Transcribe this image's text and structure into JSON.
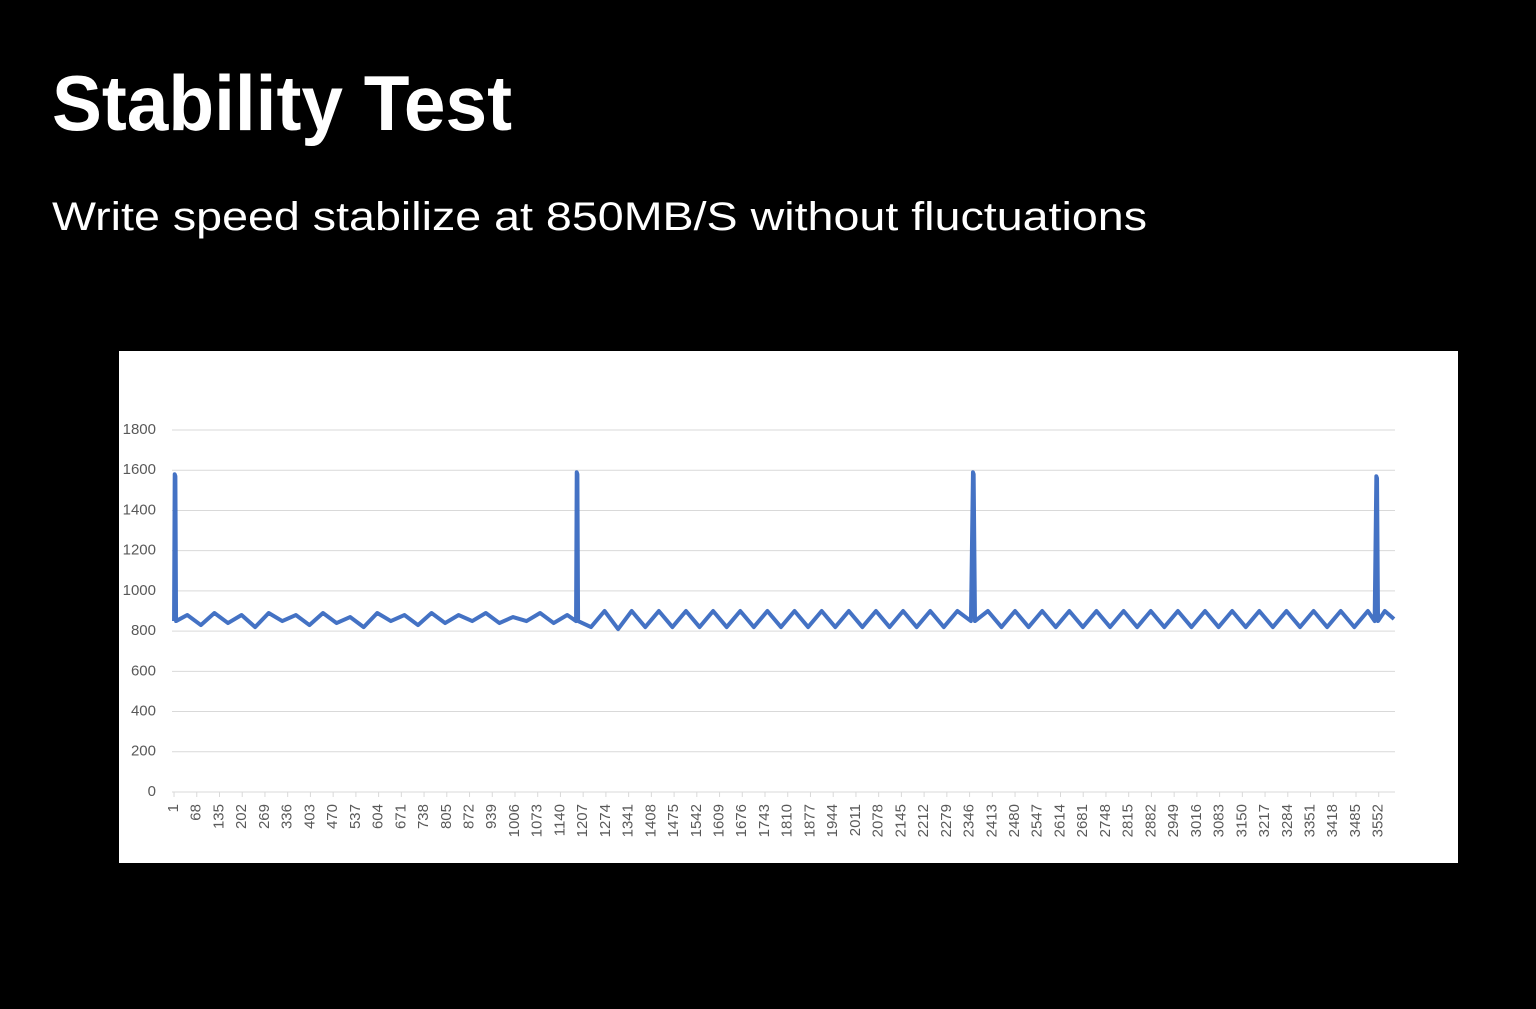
{
  "chart_data": {
    "type": "line",
    "title": "Stability Test",
    "subtitle": "Write speed stabilize at 850MB/S without fluctuations",
    "color": "#4472c4",
    "grid": true,
    "x": [
      1,
      3,
      5,
      7,
      40,
      80,
      120,
      160,
      200,
      240,
      280,
      320,
      360,
      400,
      440,
      480,
      520,
      560,
      600,
      640,
      680,
      720,
      760,
      800,
      840,
      880,
      920,
      960,
      1000,
      1040,
      1080,
      1120,
      1160,
      1186,
      1188,
      1190,
      1192,
      1230,
      1270,
      1310,
      1350,
      1390,
      1430,
      1470,
      1510,
      1550,
      1590,
      1630,
      1670,
      1710,
      1750,
      1790,
      1830,
      1870,
      1910,
      1950,
      1990,
      2030,
      2070,
      2110,
      2150,
      2190,
      2230,
      2270,
      2310,
      2350,
      2356,
      2358,
      2362,
      2400,
      2440,
      2480,
      2520,
      2560,
      2600,
      2640,
      2680,
      2720,
      2760,
      2800,
      2840,
      2880,
      2920,
      2960,
      3000,
      3040,
      3080,
      3120,
      3160,
      3200,
      3240,
      3280,
      3320,
      3360,
      3400,
      3440,
      3480,
      3520,
      3540,
      3545,
      3547,
      3550,
      3570,
      3597
    ],
    "values": [
      850,
      1580,
      1570,
      850,
      880,
      830,
      890,
      840,
      880,
      820,
      890,
      850,
      880,
      830,
      890,
      840,
      870,
      820,
      890,
      850,
      880,
      830,
      890,
      840,
      880,
      850,
      890,
      840,
      870,
      850,
      890,
      840,
      880,
      850,
      1590,
      1580,
      850,
      820,
      900,
      810,
      900,
      820,
      900,
      820,
      900,
      820,
      900,
      820,
      900,
      820,
      900,
      820,
      900,
      820,
      900,
      820,
      900,
      820,
      900,
      820,
      900,
      820,
      900,
      820,
      900,
      850,
      1590,
      1580,
      850,
      900,
      820,
      900,
      820,
      900,
      820,
      900,
      820,
      900,
      820,
      900,
      820,
      900,
      820,
      900,
      820,
      900,
      820,
      900,
      820,
      900,
      820,
      900,
      820,
      900,
      820,
      900,
      820,
      900,
      850,
      1570,
      1560,
      850,
      900,
      860
    ],
    "xlim": [
      -5,
      3600
    ],
    "xticks": [
      1,
      68,
      135,
      202,
      269,
      336,
      403,
      470,
      537,
      604,
      671,
      738,
      805,
      872,
      939,
      1006,
      1073,
      1140,
      1207,
      1274,
      1341,
      1408,
      1475,
      1542,
      1609,
      1676,
      1743,
      1810,
      1877,
      1944,
      2011,
      2078,
      2145,
      2212,
      2279,
      2346,
      2413,
      2480,
      2547,
      2614,
      2681,
      2748,
      2815,
      2882,
      2949,
      3016,
      3083,
      3150,
      3217,
      3284,
      3351,
      3418,
      3485,
      3552
    ],
    "ylim": [
      0,
      1800
    ],
    "yticks": [
      0,
      200,
      400,
      600,
      800,
      1000,
      1200,
      1400,
      1600,
      1800
    ]
  }
}
